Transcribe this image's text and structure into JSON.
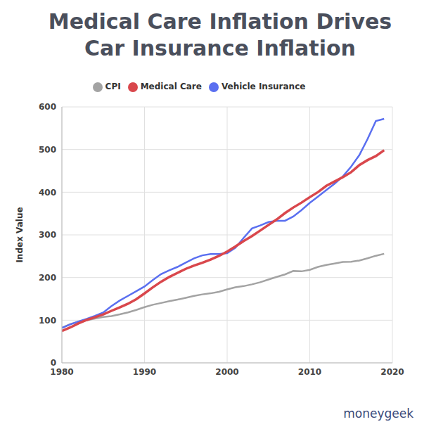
{
  "chart_data": {
    "type": "line",
    "title": "Medical Care Inflation Drives Car Insurance Inflation",
    "y_label": "Index Value",
    "annotation": "moneygeek",
    "x": [
      1980,
      1981,
      1982,
      1983,
      1984,
      1985,
      1986,
      1987,
      1988,
      1989,
      1990,
      1991,
      1992,
      1993,
      1994,
      1995,
      1996,
      1997,
      1998,
      1999,
      2000,
      2001,
      2002,
      2003,
      2004,
      2005,
      2006,
      2007,
      2008,
      2009,
      2010,
      2011,
      2012,
      2013,
      2014,
      2015,
      2016,
      2017,
      2018,
      2019
    ],
    "series": [
      {
        "name": "CPI",
        "color": "#a3a3a3",
        "values": [
          82.4,
          90.9,
          96.5,
          99.6,
          103.9,
          107.6,
          109.6,
          113.6,
          118.3,
          124.0,
          130.7,
          136.2,
          140.3,
          144.5,
          148.2,
          152.4,
          156.9,
          160.5,
          163.0,
          166.6,
          172.2,
          177.1,
          179.9,
          184.0,
          188.9,
          195.3,
          201.6,
          207.3,
          215.3,
          214.5,
          218.1,
          224.9,
          229.6,
          233.0,
          236.7,
          237.0,
          240.0,
          245.1,
          251.1,
          255.7
        ]
      },
      {
        "name": "Vehicle Insurance",
        "color": "#5a6ff0",
        "values": [
          82,
          90,
          97,
          103,
          110,
          118,
          133,
          146,
          157,
          168,
          179,
          194,
          208,
          217,
          225,
          235,
          245,
          252,
          255,
          255,
          257,
          270,
          293,
          315,
          322,
          330,
          333,
          333,
          343,
          358,
          375,
          390,
          405,
          420,
          437,
          460,
          487,
          525,
          567,
          572
        ]
      },
      {
        "name": "Medical Care",
        "color": "#d9474c",
        "values": [
          74.9,
          82.9,
          92.5,
          100.6,
          106.8,
          113.5,
          122.0,
          130.1,
          138.6,
          149.3,
          162.8,
          177.0,
          190.1,
          201.4,
          211.0,
          220.5,
          228.2,
          234.6,
          242.1,
          250.6,
          260.8,
          272.8,
          285.6,
          297.1,
          310.1,
          323.2,
          336.2,
          351.1,
          364.1,
          375.6,
          388.4,
          400.3,
          414.9,
          425.1,
          435.3,
          446.8,
          463.7,
          475.3,
          484.7,
          498.4
        ]
      }
    ],
    "xlim": [
      1980,
      2020
    ],
    "xticks": [
      1980,
      1990,
      2000,
      2010,
      2020
    ],
    "ylim": [
      0,
      600
    ],
    "yticks": [
      0,
      100,
      200,
      300,
      400,
      500,
      600
    ],
    "grid": true,
    "legend": "top"
  }
}
